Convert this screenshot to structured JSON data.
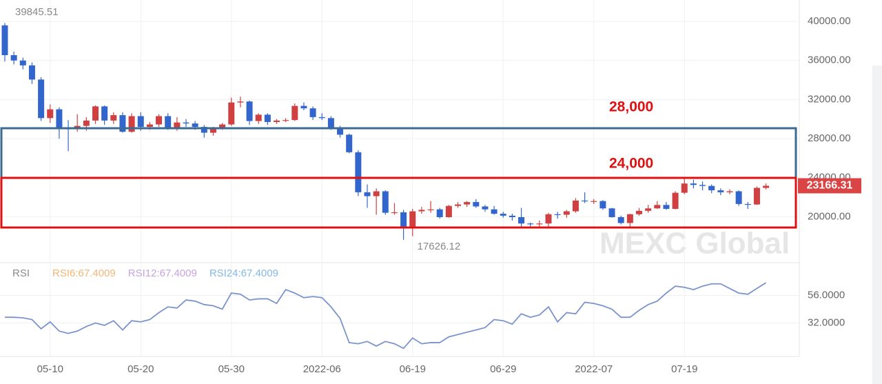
{
  "chart_data": [
    {
      "type": "candlestick",
      "categories": [
        null,
        null,
        null,
        null,
        null,
        "05-10",
        null,
        null,
        null,
        null,
        null,
        null,
        null,
        null,
        null,
        "05-20",
        null,
        null,
        null,
        null,
        null,
        null,
        null,
        null,
        null,
        "05-30",
        null,
        null,
        null,
        null,
        null,
        null,
        null,
        null,
        null,
        "2022-06",
        null,
        null,
        null,
        null,
        null,
        null,
        null,
        null,
        null,
        "06-19",
        null,
        null,
        null,
        null,
        null,
        null,
        null,
        null,
        null,
        "06-29",
        null,
        null,
        null,
        null,
        null,
        null,
        null,
        null,
        null,
        "2022-07",
        null,
        null,
        null,
        null,
        null,
        null,
        null,
        null,
        null,
        "07-19",
        null,
        null,
        null,
        null,
        null,
        null,
        null,
        null,
        null
      ],
      "open": [
        39600,
        36550,
        36000,
        35500,
        34050,
        30100,
        31000,
        29050,
        28950,
        29300,
        29850,
        31300,
        29850,
        30400,
        28700,
        30300,
        29200,
        29450,
        30300,
        29100,
        29650,
        29550,
        29200,
        28600,
        29000,
        29450,
        31700,
        31800,
        29800,
        30450,
        29700,
        29850,
        29900,
        31350,
        31100,
        30200,
        30100,
        29100,
        28400,
        26600,
        22500,
        22100,
        22600,
        20400,
        20450,
        19000,
        20550,
        20700,
        20750,
        19950,
        21100,
        21250,
        21500,
        21050,
        20750,
        20300,
        20100,
        19950,
        19300,
        19250,
        19300,
        20250,
        20200,
        20550,
        21650,
        21600,
        21600,
        20850,
        19950,
        19350,
        20250,
        20600,
        20850,
        21200,
        20800,
        22450,
        23400,
        23250,
        23150,
        22700,
        22500,
        22600,
        21300,
        21250,
        22950
      ],
      "high": [
        39845.51,
        36900,
        36300,
        35800,
        34300,
        31500,
        31200,
        29900,
        30500,
        30200,
        31400,
        31400,
        30700,
        30700,
        30600,
        30700,
        29700,
        30500,
        30600,
        30200,
        30000,
        29800,
        29400,
        29200,
        29600,
        32200,
        32300,
        31900,
        30600,
        30600,
        30000,
        30100,
        31600,
        31700,
        31300,
        30600,
        30300,
        29300,
        28500,
        26800,
        23300,
        22900,
        22700,
        21400,
        20700,
        20800,
        21000,
        21600,
        20900,
        21200,
        21500,
        21600,
        21800,
        21200,
        21100,
        20500,
        20300,
        20900,
        19400,
        19600,
        20400,
        20500,
        20700,
        21900,
        22500,
        21800,
        21700,
        20900,
        20100,
        20300,
        20900,
        21200,
        21600,
        21500,
        22600,
        24000,
        23800,
        23600,
        23300,
        22900,
        22800,
        22700,
        21500,
        23100,
        23400
      ],
      "low": [
        35900,
        35600,
        35100,
        33600,
        29800,
        29600,
        28000,
        26700,
        28700,
        28800,
        29500,
        29400,
        29500,
        28600,
        28600,
        28800,
        28900,
        29200,
        28900,
        28800,
        29200,
        28900,
        28100,
        28300,
        28900,
        29300,
        31200,
        29400,
        29500,
        29400,
        29500,
        29700,
        29800,
        30900,
        29900,
        29900,
        28900,
        28100,
        26500,
        22100,
        20900,
        20200,
        20200,
        20200,
        17626.12,
        18000,
        20300,
        20400,
        19800,
        19900,
        20900,
        21000,
        20900,
        20500,
        20200,
        19900,
        19600,
        18900,
        18950,
        19000,
        19000,
        19800,
        19900,
        20400,
        21400,
        21300,
        20700,
        19900,
        19200,
        18950,
        20100,
        20400,
        20800,
        20700,
        20750,
        22300,
        22900,
        22700,
        22400,
        22200,
        22300,
        21100,
        20800,
        21200,
        22800
      ],
      "close": [
        36550,
        36000,
        35500,
        34050,
        30100,
        31000,
        29050,
        28950,
        29300,
        29850,
        31300,
        29850,
        30400,
        28700,
        30300,
        29200,
        29450,
        30300,
        29100,
        29650,
        29550,
        29200,
        28600,
        29000,
        29450,
        31700,
        31800,
        29800,
        30450,
        29700,
        29850,
        29900,
        31350,
        31100,
        30200,
        30100,
        29100,
        28400,
        26600,
        22500,
        22100,
        22600,
        20400,
        20450,
        19000,
        20550,
        20700,
        20750,
        19950,
        21100,
        21250,
        21500,
        21050,
        20750,
        20300,
        20100,
        19950,
        19300,
        19250,
        19300,
        20250,
        20200,
        20550,
        21650,
        21600,
        21600,
        20850,
        19950,
        19350,
        20250,
        20600,
        20850,
        21200,
        20800,
        22450,
        23400,
        23250,
        23150,
        22700,
        22500,
        22600,
        21300,
        21250,
        22950,
        23166.31
      ],
      "up_color": "#d04040",
      "down_color": "#3366cc",
      "ylim": [
        15500,
        42200
      ],
      "yticks": [
        {
          "value": 20000,
          "label": "20000.00"
        },
        {
          "value": 24000,
          "label": "24000.00"
        },
        {
          "value": 28000,
          "label": "28000.00"
        },
        {
          "value": 32000,
          "label": "32000.00"
        },
        {
          "value": 36000,
          "label": "36000.00"
        },
        {
          "value": 40000,
          "label": "40000.00"
        }
      ],
      "grid": true,
      "annotations": [
        "28,000",
        "24,000"
      ],
      "watermark": "MEXC Global"
    },
    {
      "type": "line",
      "title": "RSI",
      "legend": [
        {
          "name": "RSI6:67.4009",
          "color": "#f5b574"
        },
        {
          "name": "RSI12:67.4009",
          "color": "#c9a2e2"
        },
        {
          "name": "RSI24:67.4009",
          "color": "#82b9e8"
        }
      ],
      "color": "#7b93cc",
      "values": [
        37,
        37,
        36.5,
        35,
        27,
        33,
        25,
        23,
        25,
        29,
        32,
        30,
        34,
        26,
        34,
        33,
        35,
        41,
        46,
        45,
        52,
        51,
        48,
        47,
        44,
        58,
        57,
        52,
        53,
        53,
        49,
        61,
        58,
        54,
        55,
        54,
        46,
        36,
        15,
        14,
        16,
        12,
        16,
        14,
        10,
        19,
        14,
        15,
        15,
        20,
        22,
        24,
        26,
        28,
        35,
        34,
        31,
        40,
        37,
        39,
        46,
        33,
        41,
        40,
        50,
        49,
        47,
        44,
        37,
        37,
        43,
        48,
        51,
        58,
        64,
        63,
        61,
        64,
        66,
        66,
        62,
        58,
        57,
        62,
        67
      ],
      "ylim": [
        3,
        82
      ],
      "yticks": [
        {
          "value": 32,
          "label": "32.0000"
        },
        {
          "value": 56,
          "label": "56.0000"
        }
      ],
      "grid": true
    }
  ]
}
